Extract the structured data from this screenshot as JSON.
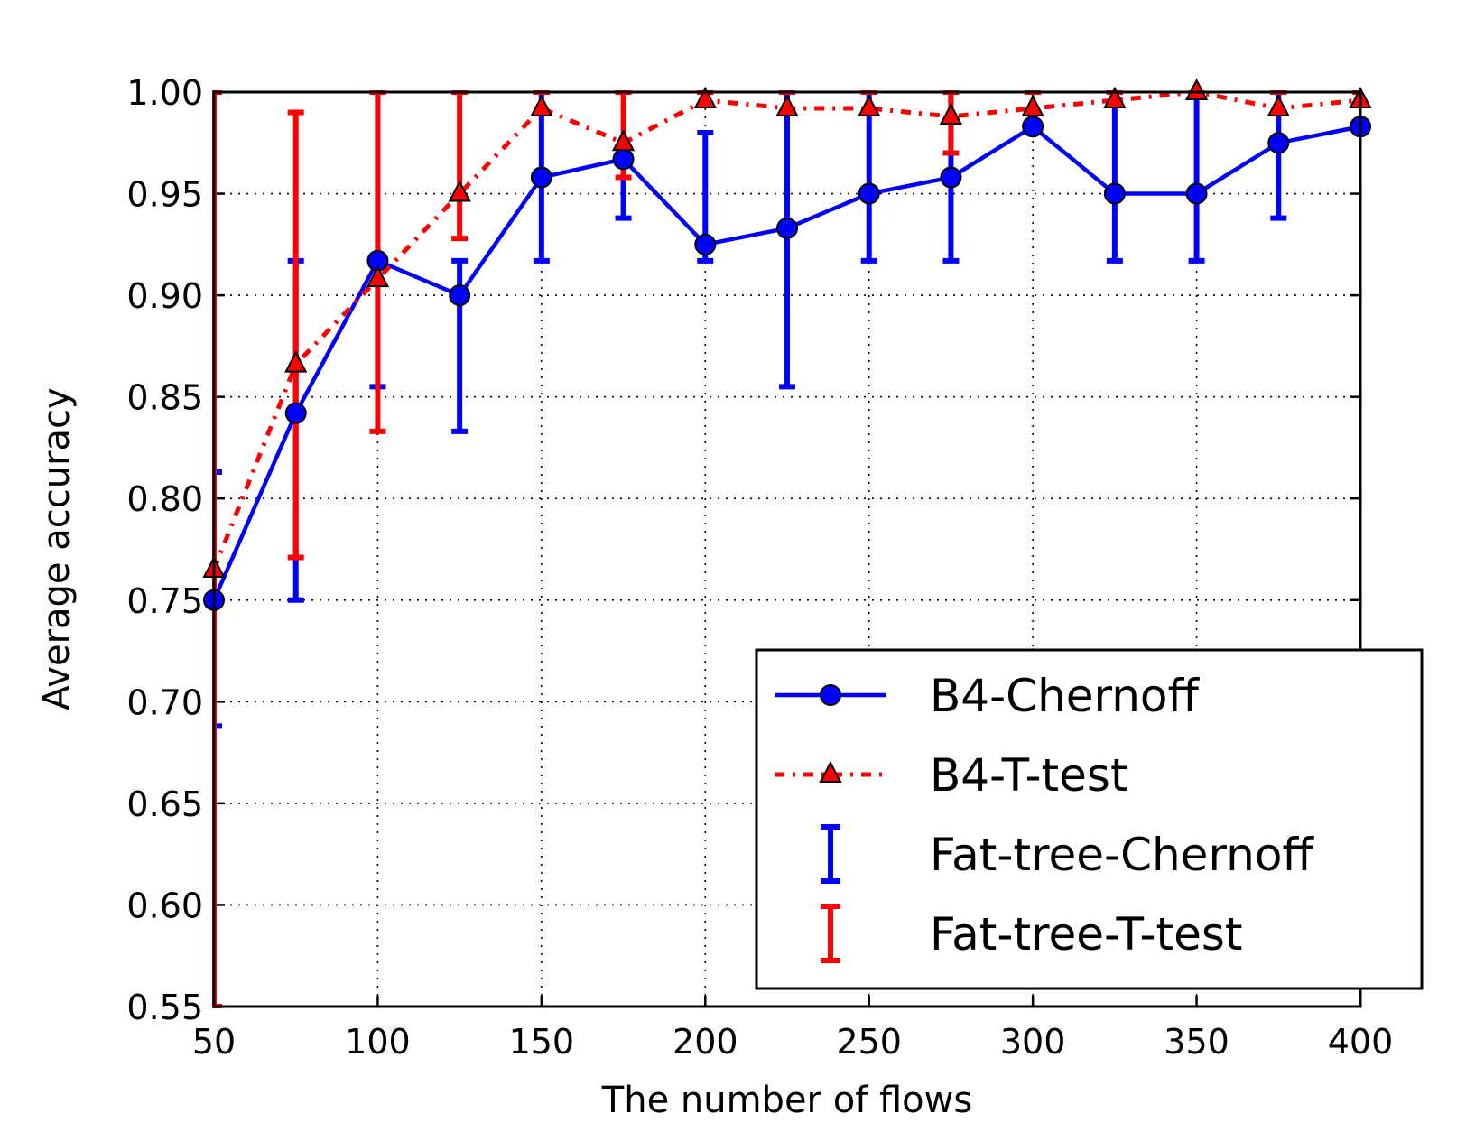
{
  "chart_data": {
    "type": "line",
    "title": "",
    "xlabel": "The number of flows",
    "ylabel": "Average accuracy",
    "xlim": [
      50,
      400
    ],
    "ylim": [
      0.55,
      1.0
    ],
    "x_ticks": [
      "50",
      "100",
      "150",
      "200",
      "250",
      "300",
      "350",
      "400"
    ],
    "y_ticks": [
      "0.55",
      "0.60",
      "0.65",
      "0.70",
      "0.75",
      "0.80",
      "0.85",
      "0.90",
      "0.95",
      "1.00"
    ],
    "grid": true,
    "legend_position": "lower-right",
    "x": [
      50,
      75,
      100,
      125,
      150,
      175,
      200,
      225,
      250,
      275,
      300,
      325,
      350,
      375,
      400
    ],
    "series": [
      {
        "name": "B4-Chernoff",
        "kind": "line",
        "style": "solid",
        "marker": "circle",
        "color": "#0000ff",
        "values": [
          0.75,
          0.842,
          0.917,
          0.9,
          0.958,
          0.967,
          0.925,
          0.933,
          0.95,
          0.958,
          0.983,
          0.95,
          0.95,
          0.975,
          0.983
        ]
      },
      {
        "name": "B4-T-test",
        "kind": "line",
        "style": "dashdot",
        "marker": "triangle",
        "color": "#ff0000",
        "values": [
          0.765,
          0.866,
          0.908,
          0.95,
          0.992,
          0.975,
          0.996,
          0.992,
          0.992,
          0.988,
          0.992,
          0.996,
          1.0,
          0.992,
          0.996
        ]
      },
      {
        "name": "Fat-tree-Chernoff",
        "kind": "errorbar",
        "color": "#0000ff",
        "lower": [
          0.688,
          0.75,
          0.855,
          0.833,
          0.917,
          0.938,
          0.917,
          0.855,
          0.917,
          0.917,
          0.983,
          0.917,
          0.917,
          0.938,
          0.983
        ],
        "upper": [
          0.813,
          0.917,
          1.0,
          0.917,
          1.0,
          0.967,
          0.98,
          1.0,
          1.0,
          1.0,
          0.983,
          1.0,
          1.0,
          1.0,
          0.983
        ]
      },
      {
        "name": "Fat-tree-T-test",
        "kind": "errorbar",
        "color": "#ff0000",
        "lower": [
          0.55,
          0.771,
          0.833,
          0.928,
          1.0,
          0.958,
          1.0,
          1.0,
          1.0,
          0.97,
          1.0,
          1.0,
          1.0,
          1.0,
          1.0
        ],
        "upper": [
          1.0,
          0.99,
          1.0,
          1.0,
          1.0,
          1.0,
          1.0,
          1.0,
          1.0,
          1.0,
          1.0,
          1.0,
          1.0,
          1.0,
          1.0
        ]
      }
    ]
  }
}
